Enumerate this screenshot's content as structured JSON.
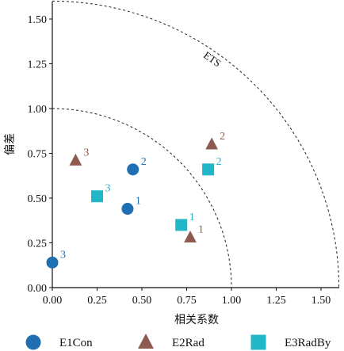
{
  "chart_data": {
    "type": "scatter",
    "title": "",
    "xlabel": "相关系数",
    "ylabel": "偏差",
    "xlim": [
      0,
      1.6
    ],
    "ylim": [
      0,
      1.6
    ],
    "xticks": [
      "0.00",
      "0.25",
      "0.50",
      "0.75",
      "1.00",
      "1.25",
      "1.50"
    ],
    "yticks": [
      "0.00",
      "0.25",
      "0.50",
      "0.75",
      "1.00",
      "1.25",
      "1.50"
    ],
    "reference_arcs": [
      {
        "radius": 1.0,
        "label": ""
      },
      {
        "radius": 1.6,
        "label": "ETS"
      }
    ],
    "legend_position": "bottom",
    "series": [
      {
        "name": "E1Con",
        "marker": "circle",
        "color": "#1f6fb2",
        "points": [
          {
            "x": 0.42,
            "y": 0.44,
            "label": "1"
          },
          {
            "x": 0.45,
            "y": 0.66,
            "label": "2"
          },
          {
            "x": 0.0,
            "y": 0.14,
            "label": "3"
          }
        ]
      },
      {
        "name": "E2Rad",
        "marker": "triangle",
        "color": "#8c5a4e",
        "points": [
          {
            "x": 0.77,
            "y": 0.28,
            "label": "1"
          },
          {
            "x": 0.89,
            "y": 0.8,
            "label": "2"
          },
          {
            "x": 0.13,
            "y": 0.71,
            "label": "3"
          }
        ]
      },
      {
        "name": "E3RadBy",
        "marker": "square",
        "color": "#21b6c8",
        "points": [
          {
            "x": 0.72,
            "y": 0.35,
            "label": "1"
          },
          {
            "x": 0.87,
            "y": 0.66,
            "label": "2"
          },
          {
            "x": 0.25,
            "y": 0.51,
            "label": "3"
          }
        ]
      }
    ]
  }
}
